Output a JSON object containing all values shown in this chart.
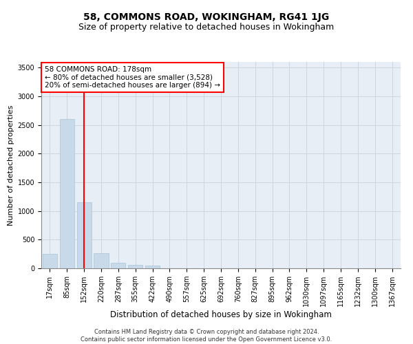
{
  "title": "58, COMMONS ROAD, WOKINGHAM, RG41 1JG",
  "subtitle": "Size of property relative to detached houses in Wokingham",
  "xlabel": "Distribution of detached houses by size in Wokingham",
  "ylabel": "Number of detached properties",
  "footer_line1": "Contains HM Land Registry data © Crown copyright and database right 2024.",
  "footer_line2": "Contains public sector information licensed under the Open Government Licence v3.0.",
  "bin_labels": [
    "17sqm",
    "85sqm",
    "152sqm",
    "220sqm",
    "287sqm",
    "355sqm",
    "422sqm",
    "490sqm",
    "557sqm",
    "625sqm",
    "692sqm",
    "760sqm",
    "827sqm",
    "895sqm",
    "962sqm",
    "1030sqm",
    "1097sqm",
    "1165sqm",
    "1232sqm",
    "1300sqm",
    "1367sqm"
  ],
  "bar_values": [
    250,
    2600,
    1150,
    265,
    100,
    60,
    50,
    0,
    0,
    0,
    0,
    0,
    0,
    0,
    0,
    0,
    0,
    0,
    0,
    0,
    0
  ],
  "bar_color": "#c8daea",
  "bar_edge_color": "#a8c4d8",
  "vline_color": "red",
  "annotation_title": "58 COMMONS ROAD: 178sqm",
  "annotation_line1": "← 80% of detached houses are smaller (3,528)",
  "annotation_line2": "20% of semi-detached houses are larger (894) →",
  "annotation_box_color": "white",
  "annotation_box_edge": "red",
  "ylim": [
    0,
    3600
  ],
  "yticks": [
    0,
    500,
    1000,
    1500,
    2000,
    2500,
    3000,
    3500
  ],
  "grid_color": "#ccd5e0",
  "background_color": "#e8eef5",
  "title_fontsize": 10,
  "subtitle_fontsize": 9,
  "ylabel_fontsize": 8,
  "xlabel_fontsize": 8.5,
  "tick_fontsize": 7,
  "annotation_fontsize": 7.5,
  "footer_fontsize": 6
}
